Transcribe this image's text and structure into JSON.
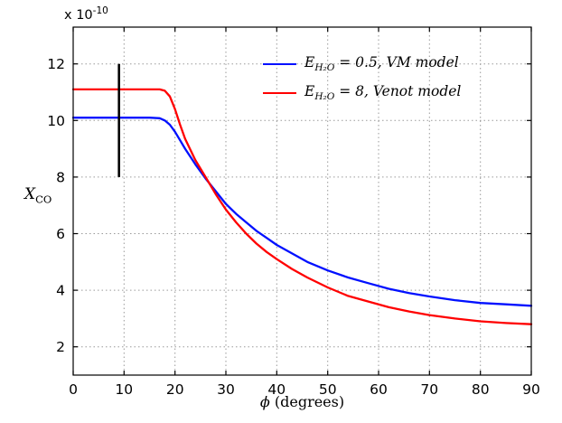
{
  "chart_data": {
    "type": "line",
    "title": "",
    "exponent_label": {
      "prefix": "x 10",
      "exp": "-10"
    },
    "xlabel": {
      "symbol": "ϕ",
      "rest": " (degrees)"
    },
    "ylabel": {
      "var": "X",
      "sub": "CO"
    },
    "xlim": [
      0,
      90
    ],
    "ylim": [
      1,
      13.3
    ],
    "xticks": [
      0,
      10,
      20,
      30,
      40,
      50,
      60,
      70,
      80,
      90
    ],
    "yticks": [
      2,
      4,
      6,
      8,
      10,
      12
    ],
    "grid": true,
    "grid_style": "dotted",
    "grid_color": "#9a9a9a",
    "axis_color": "#000000",
    "legend": {
      "position": "upper-right",
      "box": false
    },
    "series": [
      {
        "name": "E_H2O = 0.5, VM model",
        "name_parts": {
          "var": "E",
          "sub": "H₂O",
          "rest": " = 0.5, VM model"
        },
        "color": "#0010ff",
        "x": [
          0,
          5,
          10,
          15,
          17,
          18,
          19,
          20,
          21,
          22,
          24,
          26,
          28,
          30,
          32,
          34,
          36,
          38,
          40,
          43,
          46,
          50,
          54,
          58,
          62,
          66,
          70,
          75,
          80,
          85,
          90
        ],
        "y": [
          10.1,
          10.1,
          10.1,
          10.1,
          10.08,
          10.0,
          9.85,
          9.6,
          9.3,
          9.0,
          8.45,
          7.95,
          7.5,
          7.05,
          6.7,
          6.4,
          6.1,
          5.85,
          5.6,
          5.3,
          5.0,
          4.7,
          4.45,
          4.25,
          4.05,
          3.9,
          3.78,
          3.65,
          3.55,
          3.5,
          3.45
        ]
      },
      {
        "name": "E_H2O = 8, Venot model",
        "name_parts": {
          "var": "E",
          "sub": "H₂O",
          "rest": " = 8, Venot model"
        },
        "color": "#ff0000",
        "x": [
          0,
          5,
          10,
          15,
          17,
          18,
          19,
          20,
          21,
          22,
          24,
          26,
          28,
          30,
          32,
          34,
          36,
          38,
          40,
          43,
          46,
          50,
          54,
          58,
          62,
          66,
          70,
          75,
          80,
          85,
          90
        ],
        "y": [
          11.1,
          11.1,
          11.1,
          11.1,
          11.1,
          11.05,
          10.85,
          10.4,
          9.85,
          9.35,
          8.6,
          8.0,
          7.4,
          6.85,
          6.4,
          6.0,
          5.65,
          5.35,
          5.1,
          4.75,
          4.45,
          4.1,
          3.8,
          3.6,
          3.4,
          3.25,
          3.12,
          3.0,
          2.9,
          2.84,
          2.8
        ]
      }
    ],
    "errorbar": {
      "x": 9,
      "y_low": 8,
      "y_high": 12,
      "color": "#000000"
    }
  }
}
